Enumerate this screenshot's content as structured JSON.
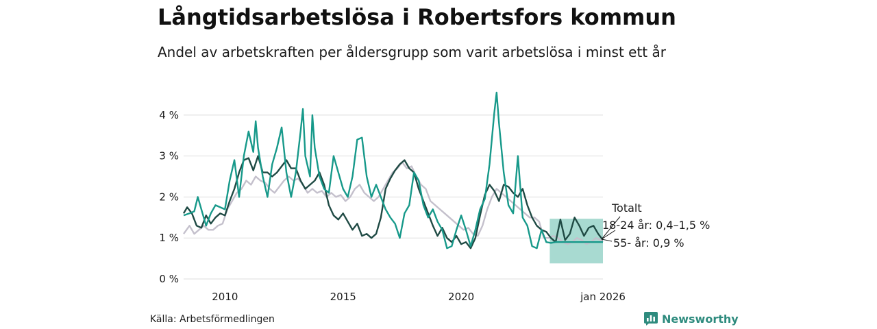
{
  "title": "Långtidsarbetslösa i Robertsfors kommun",
  "subtitle": "Andel av arbetskraften per åldersgrupp som varit arbetslösa i minst ett år",
  "source": "Källa: Arbetsförmedlingen",
  "brand": "Newsworthy",
  "colors": {
    "total": "#1f4a44",
    "young": "#17998a",
    "old": "#c4c0cc",
    "band": "#9fd6cc",
    "grid": "#dddddd",
    "brand": "#2e8b7e"
  },
  "chart_data": {
    "type": "line",
    "x_unit": "year",
    "xlim": [
      2008.25,
      2026.0
    ],
    "ylim": [
      0,
      4.7
    ],
    "y_ticks": [
      0,
      1,
      2,
      3,
      4
    ],
    "y_tick_labels": [
      "0 %",
      "1 %",
      "2 %",
      "3 %",
      "4 %"
    ],
    "x_ticks": [
      2010,
      2015,
      2020,
      2026.0
    ],
    "x_tick_labels": [
      "2010",
      "2015",
      "2020",
      "jan 2026"
    ],
    "grid": true,
    "series": [
      {
        "name": "Totalt",
        "color_key": "total",
        "points": [
          [
            2008.25,
            1.6
          ],
          [
            2008.4,
            1.75
          ],
          [
            2008.6,
            1.6
          ],
          [
            2008.8,
            1.3
          ],
          [
            2009.0,
            1.25
          ],
          [
            2009.2,
            1.55
          ],
          [
            2009.4,
            1.35
          ],
          [
            2009.6,
            1.5
          ],
          [
            2009.8,
            1.6
          ],
          [
            2010.0,
            1.55
          ],
          [
            2010.2,
            1.9
          ],
          [
            2010.4,
            2.2
          ],
          [
            2010.6,
            2.6
          ],
          [
            2010.8,
            2.9
          ],
          [
            2011.0,
            2.95
          ],
          [
            2011.2,
            2.65
          ],
          [
            2011.4,
            3.0
          ],
          [
            2011.6,
            2.6
          ],
          [
            2011.8,
            2.6
          ],
          [
            2012.0,
            2.5
          ],
          [
            2012.2,
            2.6
          ],
          [
            2012.4,
            2.75
          ],
          [
            2012.6,
            2.9
          ],
          [
            2012.8,
            2.7
          ],
          [
            2013.0,
            2.7
          ],
          [
            2013.2,
            2.4
          ],
          [
            2013.4,
            2.2
          ],
          [
            2013.6,
            2.3
          ],
          [
            2013.8,
            2.4
          ],
          [
            2014.0,
            2.6
          ],
          [
            2014.2,
            2.3
          ],
          [
            2014.4,
            1.8
          ],
          [
            2014.6,
            1.55
          ],
          [
            2014.8,
            1.45
          ],
          [
            2015.0,
            1.6
          ],
          [
            2015.2,
            1.4
          ],
          [
            2015.4,
            1.2
          ],
          [
            2015.6,
            1.35
          ],
          [
            2015.8,
            1.05
          ],
          [
            2016.0,
            1.1
          ],
          [
            2016.2,
            1.0
          ],
          [
            2016.4,
            1.1
          ],
          [
            2016.6,
            1.5
          ],
          [
            2016.8,
            2.2
          ],
          [
            2017.0,
            2.45
          ],
          [
            2017.2,
            2.65
          ],
          [
            2017.4,
            2.8
          ],
          [
            2017.6,
            2.9
          ],
          [
            2017.8,
            2.7
          ],
          [
            2018.0,
            2.6
          ],
          [
            2018.2,
            2.2
          ],
          [
            2018.4,
            1.9
          ],
          [
            2018.6,
            1.6
          ],
          [
            2018.8,
            1.3
          ],
          [
            2019.0,
            1.05
          ],
          [
            2019.2,
            1.25
          ],
          [
            2019.4,
            1.0
          ],
          [
            2019.6,
            0.9
          ],
          [
            2019.8,
            1.05
          ],
          [
            2020.0,
            0.85
          ],
          [
            2020.2,
            0.9
          ],
          [
            2020.4,
            0.75
          ],
          [
            2020.6,
            1.0
          ],
          [
            2020.8,
            1.55
          ],
          [
            2021.0,
            2.05
          ],
          [
            2021.2,
            2.3
          ],
          [
            2021.4,
            2.15
          ],
          [
            2021.6,
            1.9
          ],
          [
            2021.8,
            2.3
          ],
          [
            2022.0,
            2.25
          ],
          [
            2022.2,
            2.1
          ],
          [
            2022.4,
            2.0
          ],
          [
            2022.6,
            2.2
          ],
          [
            2022.8,
            1.8
          ],
          [
            2023.0,
            1.5
          ],
          [
            2023.2,
            1.3
          ],
          [
            2023.4,
            1.2
          ],
          [
            2023.6,
            1.15
          ],
          [
            2023.8,
            1.0
          ],
          [
            2024.0,
            0.9
          ],
          [
            2024.2,
            1.45
          ],
          [
            2024.4,
            0.95
          ],
          [
            2024.6,
            1.1
          ],
          [
            2024.8,
            1.5
          ],
          [
            2025.0,
            1.3
          ],
          [
            2025.2,
            1.05
          ],
          [
            2025.4,
            1.25
          ],
          [
            2025.6,
            1.3
          ],
          [
            2025.8,
            1.1
          ],
          [
            2026.0,
            0.95
          ]
        ]
      },
      {
        "name": "18-24 år",
        "color_key": "young",
        "points": [
          [
            2008.25,
            1.55
          ],
          [
            2008.5,
            1.6
          ],
          [
            2008.7,
            1.65
          ],
          [
            2008.85,
            2.0
          ],
          [
            2009.0,
            1.7
          ],
          [
            2009.2,
            1.3
          ],
          [
            2009.4,
            1.6
          ],
          [
            2009.6,
            1.8
          ],
          [
            2009.8,
            1.75
          ],
          [
            2010.0,
            1.7
          ],
          [
            2010.2,
            2.4
          ],
          [
            2010.4,
            2.9
          ],
          [
            2010.6,
            2.0
          ],
          [
            2010.8,
            3.0
          ],
          [
            2011.0,
            3.6
          ],
          [
            2011.2,
            3.1
          ],
          [
            2011.3,
            3.85
          ],
          [
            2011.4,
            3.2
          ],
          [
            2011.6,
            2.5
          ],
          [
            2011.8,
            2.0
          ],
          [
            2012.0,
            2.8
          ],
          [
            2012.2,
            3.2
          ],
          [
            2012.4,
            3.7
          ],
          [
            2012.6,
            2.6
          ],
          [
            2012.8,
            2.0
          ],
          [
            2013.0,
            2.6
          ],
          [
            2013.2,
            3.6
          ],
          [
            2013.3,
            4.15
          ],
          [
            2013.4,
            3.0
          ],
          [
            2013.6,
            2.5
          ],
          [
            2013.7,
            4.0
          ],
          [
            2013.8,
            3.2
          ],
          [
            2014.0,
            2.5
          ],
          [
            2014.2,
            2.2
          ],
          [
            2014.4,
            2.1
          ],
          [
            2014.6,
            3.0
          ],
          [
            2014.8,
            2.6
          ],
          [
            2015.0,
            2.2
          ],
          [
            2015.2,
            2.0
          ],
          [
            2015.4,
            2.5
          ],
          [
            2015.6,
            3.4
          ],
          [
            2015.8,
            3.45
          ],
          [
            2016.0,
            2.5
          ],
          [
            2016.2,
            2.0
          ],
          [
            2016.4,
            2.3
          ],
          [
            2016.6,
            2.0
          ],
          [
            2016.8,
            1.7
          ],
          [
            2017.0,
            1.5
          ],
          [
            2017.2,
            1.35
          ],
          [
            2017.4,
            1.0
          ],
          [
            2017.6,
            1.6
          ],
          [
            2017.8,
            1.8
          ],
          [
            2018.0,
            2.6
          ],
          [
            2018.2,
            2.4
          ],
          [
            2018.4,
            1.8
          ],
          [
            2018.6,
            1.5
          ],
          [
            2018.8,
            1.7
          ],
          [
            2019.0,
            1.4
          ],
          [
            2019.2,
            1.2
          ],
          [
            2019.4,
            0.75
          ],
          [
            2019.6,
            0.8
          ],
          [
            2019.8,
            1.2
          ],
          [
            2020.0,
            1.55
          ],
          [
            2020.2,
            1.2
          ],
          [
            2020.4,
            0.8
          ],
          [
            2020.6,
            1.2
          ],
          [
            2020.8,
            1.7
          ],
          [
            2021.0,
            1.95
          ],
          [
            2021.2,
            2.8
          ],
          [
            2021.4,
            4.05
          ],
          [
            2021.5,
            4.55
          ],
          [
            2021.6,
            3.8
          ],
          [
            2021.8,
            2.6
          ],
          [
            2022.0,
            1.8
          ],
          [
            2022.2,
            1.6
          ],
          [
            2022.4,
            3.0
          ],
          [
            2022.6,
            1.5
          ],
          [
            2022.8,
            1.3
          ],
          [
            2023.0,
            0.8
          ],
          [
            2023.2,
            0.75
          ],
          [
            2023.4,
            1.2
          ],
          [
            2023.6,
            0.9
          ],
          [
            2023.8,
            0.88
          ],
          [
            2024.0,
            0.9
          ],
          [
            2024.5,
            0.9
          ],
          [
            2025.0,
            0.9
          ],
          [
            2025.5,
            0.9
          ],
          [
            2026.0,
            0.9
          ]
        ]
      },
      {
        "name": "55- år",
        "color_key": "old",
        "points": [
          [
            2008.25,
            1.1
          ],
          [
            2008.5,
            1.3
          ],
          [
            2008.7,
            1.1
          ],
          [
            2008.9,
            1.2
          ],
          [
            2009.1,
            1.3
          ],
          [
            2009.3,
            1.2
          ],
          [
            2009.5,
            1.2
          ],
          [
            2009.7,
            1.3
          ],
          [
            2009.9,
            1.35
          ],
          [
            2010.1,
            1.7
          ],
          [
            2010.3,
            1.9
          ],
          [
            2010.5,
            2.1
          ],
          [
            2010.7,
            2.2
          ],
          [
            2010.9,
            2.4
          ],
          [
            2011.1,
            2.3
          ],
          [
            2011.3,
            2.5
          ],
          [
            2011.5,
            2.4
          ],
          [
            2011.7,
            2.35
          ],
          [
            2011.9,
            2.2
          ],
          [
            2012.1,
            2.1
          ],
          [
            2012.3,
            2.25
          ],
          [
            2012.5,
            2.4
          ],
          [
            2012.7,
            2.5
          ],
          [
            2012.9,
            2.4
          ],
          [
            2013.1,
            2.45
          ],
          [
            2013.3,
            2.3
          ],
          [
            2013.5,
            2.1
          ],
          [
            2013.7,
            2.2
          ],
          [
            2013.9,
            2.1
          ],
          [
            2014.1,
            2.15
          ],
          [
            2014.3,
            2.0
          ],
          [
            2014.5,
            2.1
          ],
          [
            2014.7,
            2.0
          ],
          [
            2014.9,
            2.05
          ],
          [
            2015.1,
            1.9
          ],
          [
            2015.3,
            2.0
          ],
          [
            2015.5,
            2.2
          ],
          [
            2015.7,
            2.3
          ],
          [
            2015.9,
            2.1
          ],
          [
            2016.1,
            2.0
          ],
          [
            2016.3,
            1.9
          ],
          [
            2016.5,
            2.0
          ],
          [
            2016.7,
            2.2
          ],
          [
            2016.9,
            2.4
          ],
          [
            2017.1,
            2.6
          ],
          [
            2017.3,
            2.7
          ],
          [
            2017.5,
            2.85
          ],
          [
            2017.7,
            2.7
          ],
          [
            2017.9,
            2.75
          ],
          [
            2018.1,
            2.5
          ],
          [
            2018.3,
            2.3
          ],
          [
            2018.5,
            2.2
          ],
          [
            2018.7,
            1.9
          ],
          [
            2018.9,
            1.8
          ],
          [
            2019.1,
            1.7
          ],
          [
            2019.3,
            1.6
          ],
          [
            2019.5,
            1.5
          ],
          [
            2019.7,
            1.4
          ],
          [
            2019.9,
            1.3
          ],
          [
            2020.1,
            1.2
          ],
          [
            2020.3,
            1.25
          ],
          [
            2020.5,
            1.1
          ],
          [
            2020.7,
            1.05
          ],
          [
            2020.9,
            1.3
          ],
          [
            2021.1,
            1.7
          ],
          [
            2021.3,
            2.0
          ],
          [
            2021.5,
            2.2
          ],
          [
            2021.7,
            2.1
          ],
          [
            2021.9,
            2.0
          ],
          [
            2022.1,
            1.9
          ],
          [
            2022.3,
            1.8
          ],
          [
            2022.5,
            1.7
          ],
          [
            2022.7,
            1.6
          ],
          [
            2022.9,
            1.5
          ],
          [
            2023.1,
            1.5
          ],
          [
            2023.3,
            1.4
          ],
          [
            2023.5,
            1.0
          ],
          [
            2023.7,
            1.0
          ],
          [
            2023.9,
            1.05
          ],
          [
            2024.1,
            1.0
          ],
          [
            2024.3,
            0.9
          ],
          [
            2024.5,
            0.85
          ],
          [
            2024.7,
            0.9
          ],
          [
            2024.9,
            1.0
          ],
          [
            2025.1,
            0.95
          ],
          [
            2025.3,
            0.85
          ],
          [
            2025.5,
            0.9
          ],
          [
            2025.7,
            1.0
          ],
          [
            2025.9,
            0.95
          ],
          [
            2026.0,
            0.9
          ]
        ]
      }
    ],
    "band": {
      "name": "18-24 år",
      "x": [
        2023.75,
        2026.0
      ],
      "y": [
        0.38,
        1.47
      ]
    },
    "annotations": [
      {
        "text": "Totalt",
        "series": "Totalt"
      },
      {
        "text": "18-24 år: 0,4–1,5 %",
        "series": "18-24 år"
      },
      {
        "text": "55- år: 0,9 %",
        "series": "55- år"
      }
    ]
  }
}
